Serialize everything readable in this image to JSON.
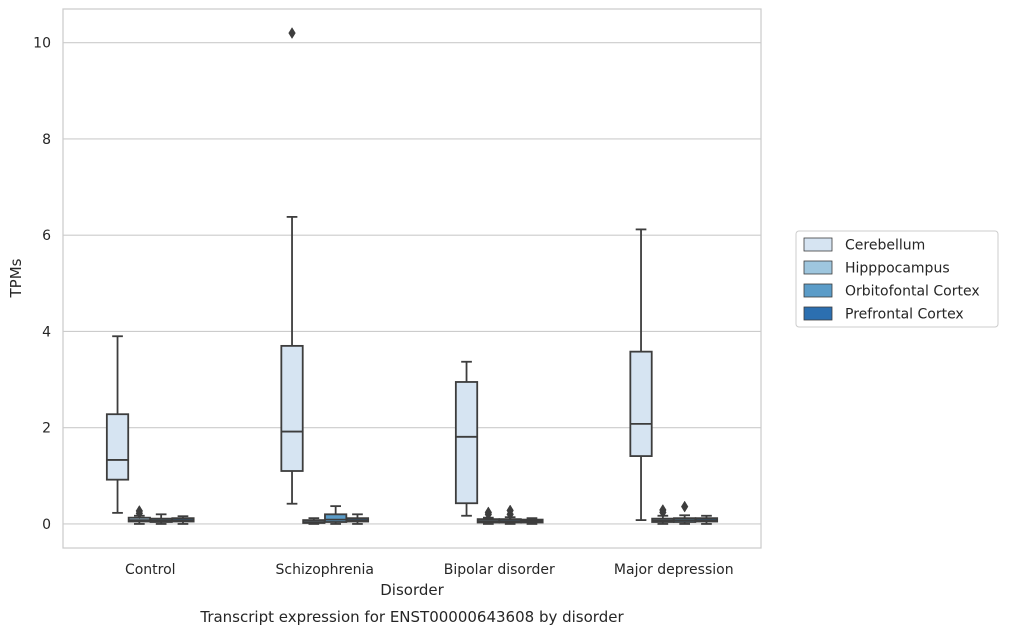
{
  "chart_data": {
    "type": "box",
    "title": "",
    "caption": "Transcript expression for ENST00000643608 by disorder",
    "xlabel": "Disorder",
    "ylabel": "TPMs",
    "ylim": [
      -0.5,
      10.7
    ],
    "yticks": [
      0,
      2,
      4,
      6,
      8,
      10
    ],
    "grid": "horizontal",
    "legend_position": "right",
    "categories": [
      "Control",
      "Schizophrenia",
      "Bipolar disorder",
      "Major depression"
    ],
    "series": [
      {
        "name": "Cerebellum",
        "color": "#d6e4f2",
        "boxes": [
          {
            "whislo": 0.23,
            "q1": 0.92,
            "med": 1.33,
            "q3": 2.28,
            "whishi": 3.9,
            "fliers": []
          },
          {
            "whislo": 0.42,
            "q1": 1.1,
            "med": 1.92,
            "q3": 3.7,
            "whishi": 6.38,
            "fliers": [
              10.2
            ]
          },
          {
            "whislo": 0.17,
            "q1": 0.43,
            "med": 1.81,
            "q3": 2.95,
            "whishi": 3.37,
            "fliers": []
          },
          {
            "whislo": 0.08,
            "q1": 1.41,
            "med": 2.08,
            "q3": 3.58,
            "whishi": 6.12,
            "fliers": []
          }
        ]
      },
      {
        "name": "Hipppocampus",
        "color": "#9ec6de",
        "boxes": [
          {
            "whislo": 0.0,
            "q1": 0.05,
            "med": 0.08,
            "q3": 0.13,
            "whishi": 0.17,
            "fliers": [
              0.22,
              0.27
            ]
          },
          {
            "whislo": 0.0,
            "q1": 0.02,
            "med": 0.04,
            "q3": 0.08,
            "whishi": 0.12,
            "fliers": []
          },
          {
            "whislo": 0.0,
            "q1": 0.03,
            "med": 0.06,
            "q3": 0.1,
            "whishi": 0.13,
            "fliers": [
              0.2,
              0.24
            ]
          },
          {
            "whislo": 0.0,
            "q1": 0.04,
            "med": 0.07,
            "q3": 0.11,
            "whishi": 0.17,
            "fliers": [
              0.24,
              0.29
            ]
          }
        ]
      },
      {
        "name": "Orbitofontal Cortex",
        "color": "#5b9cc8",
        "boxes": [
          {
            "whislo": 0.0,
            "q1": 0.04,
            "med": 0.07,
            "q3": 0.11,
            "whishi": 0.2,
            "fliers": []
          },
          {
            "whislo": 0.0,
            "q1": 0.04,
            "med": 0.09,
            "q3": 0.2,
            "whishi": 0.37,
            "fliers": []
          },
          {
            "whislo": 0.0,
            "q1": 0.03,
            "med": 0.06,
            "q3": 0.1,
            "whishi": 0.14,
            "fliers": [
              0.2,
              0.28
            ]
          },
          {
            "whislo": 0.0,
            "q1": 0.04,
            "med": 0.08,
            "q3": 0.12,
            "whishi": 0.18,
            "fliers": [
              0.36
            ]
          }
        ]
      },
      {
        "name": "Prefrontal Cortex",
        "color": "#2c6fb0",
        "boxes": [
          {
            "whislo": 0.0,
            "q1": 0.05,
            "med": 0.08,
            "q3": 0.12,
            "whishi": 0.16,
            "fliers": []
          },
          {
            "whislo": 0.0,
            "q1": 0.05,
            "med": 0.08,
            "q3": 0.12,
            "whishi": 0.2,
            "fliers": []
          },
          {
            "whislo": 0.0,
            "q1": 0.03,
            "med": 0.06,
            "q3": 0.09,
            "whishi": 0.12,
            "fliers": []
          },
          {
            "whislo": 0.0,
            "q1": 0.05,
            "med": 0.08,
            "q3": 0.12,
            "whishi": 0.17,
            "fliers": []
          }
        ]
      }
    ]
  }
}
